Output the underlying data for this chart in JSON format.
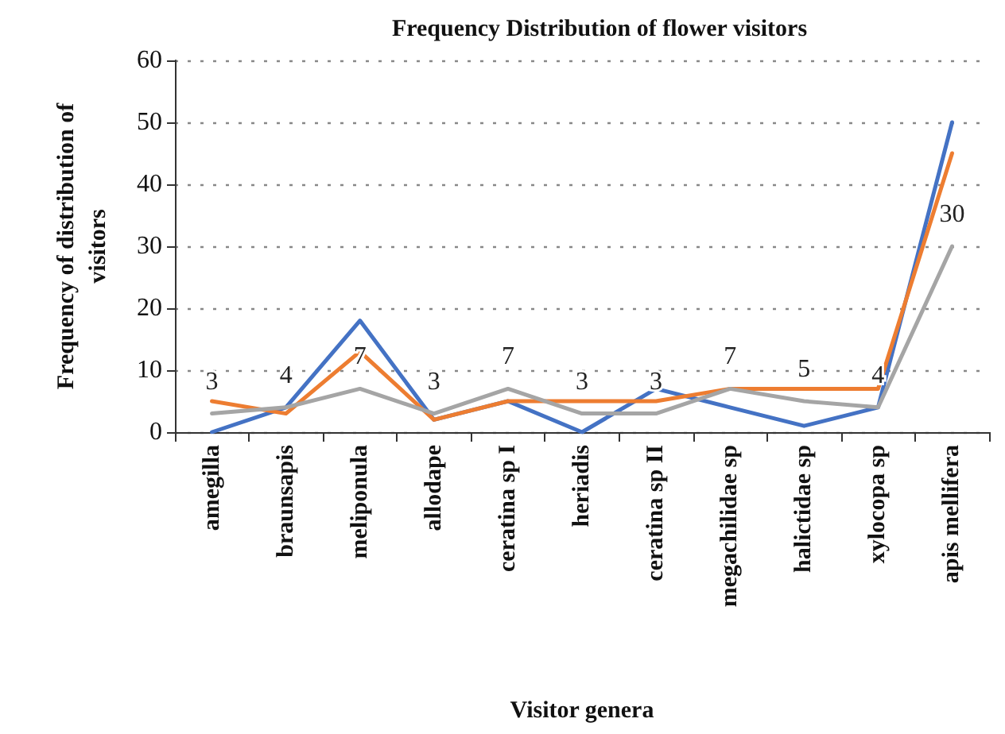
{
  "chart_data": {
    "type": "line",
    "title": "Frequency Distribution of flower visitors",
    "xlabel": "Visitor genera",
    "ylabel": "Frequency of distribution of visitors",
    "categories": [
      "amegilla",
      "braunsapis",
      "meliponula",
      "allodape",
      "ceratina sp I",
      "heriadis",
      "ceratina sp II",
      "megachilidae sp",
      "halictidae sp",
      "xylocopa sp",
      "apis mellifera"
    ],
    "series": [
      {
        "color": "#4472c4",
        "values": [
          0,
          4,
          18,
          2,
          5,
          0,
          7,
          4,
          1,
          4,
          50
        ]
      },
      {
        "color": "#ed7d31",
        "values": [
          5,
          3,
          13,
          2,
          5,
          5,
          5,
          7,
          7,
          7,
          45
        ]
      },
      {
        "color": "#a5a5a5",
        "values": [
          3,
          4,
          7,
          3,
          7,
          3,
          3,
          7,
          5,
          4,
          30
        ],
        "value_labels": [
          "3",
          "4",
          "7",
          "3",
          "7",
          "3",
          "3",
          "7",
          "5",
          "4",
          "30"
        ]
      }
    ],
    "ylim": [
      0,
      60
    ],
    "yticks": [
      0,
      10,
      20,
      30,
      40,
      50,
      60
    ],
    "grid": "y",
    "marker": "none",
    "line_style": "solid"
  }
}
